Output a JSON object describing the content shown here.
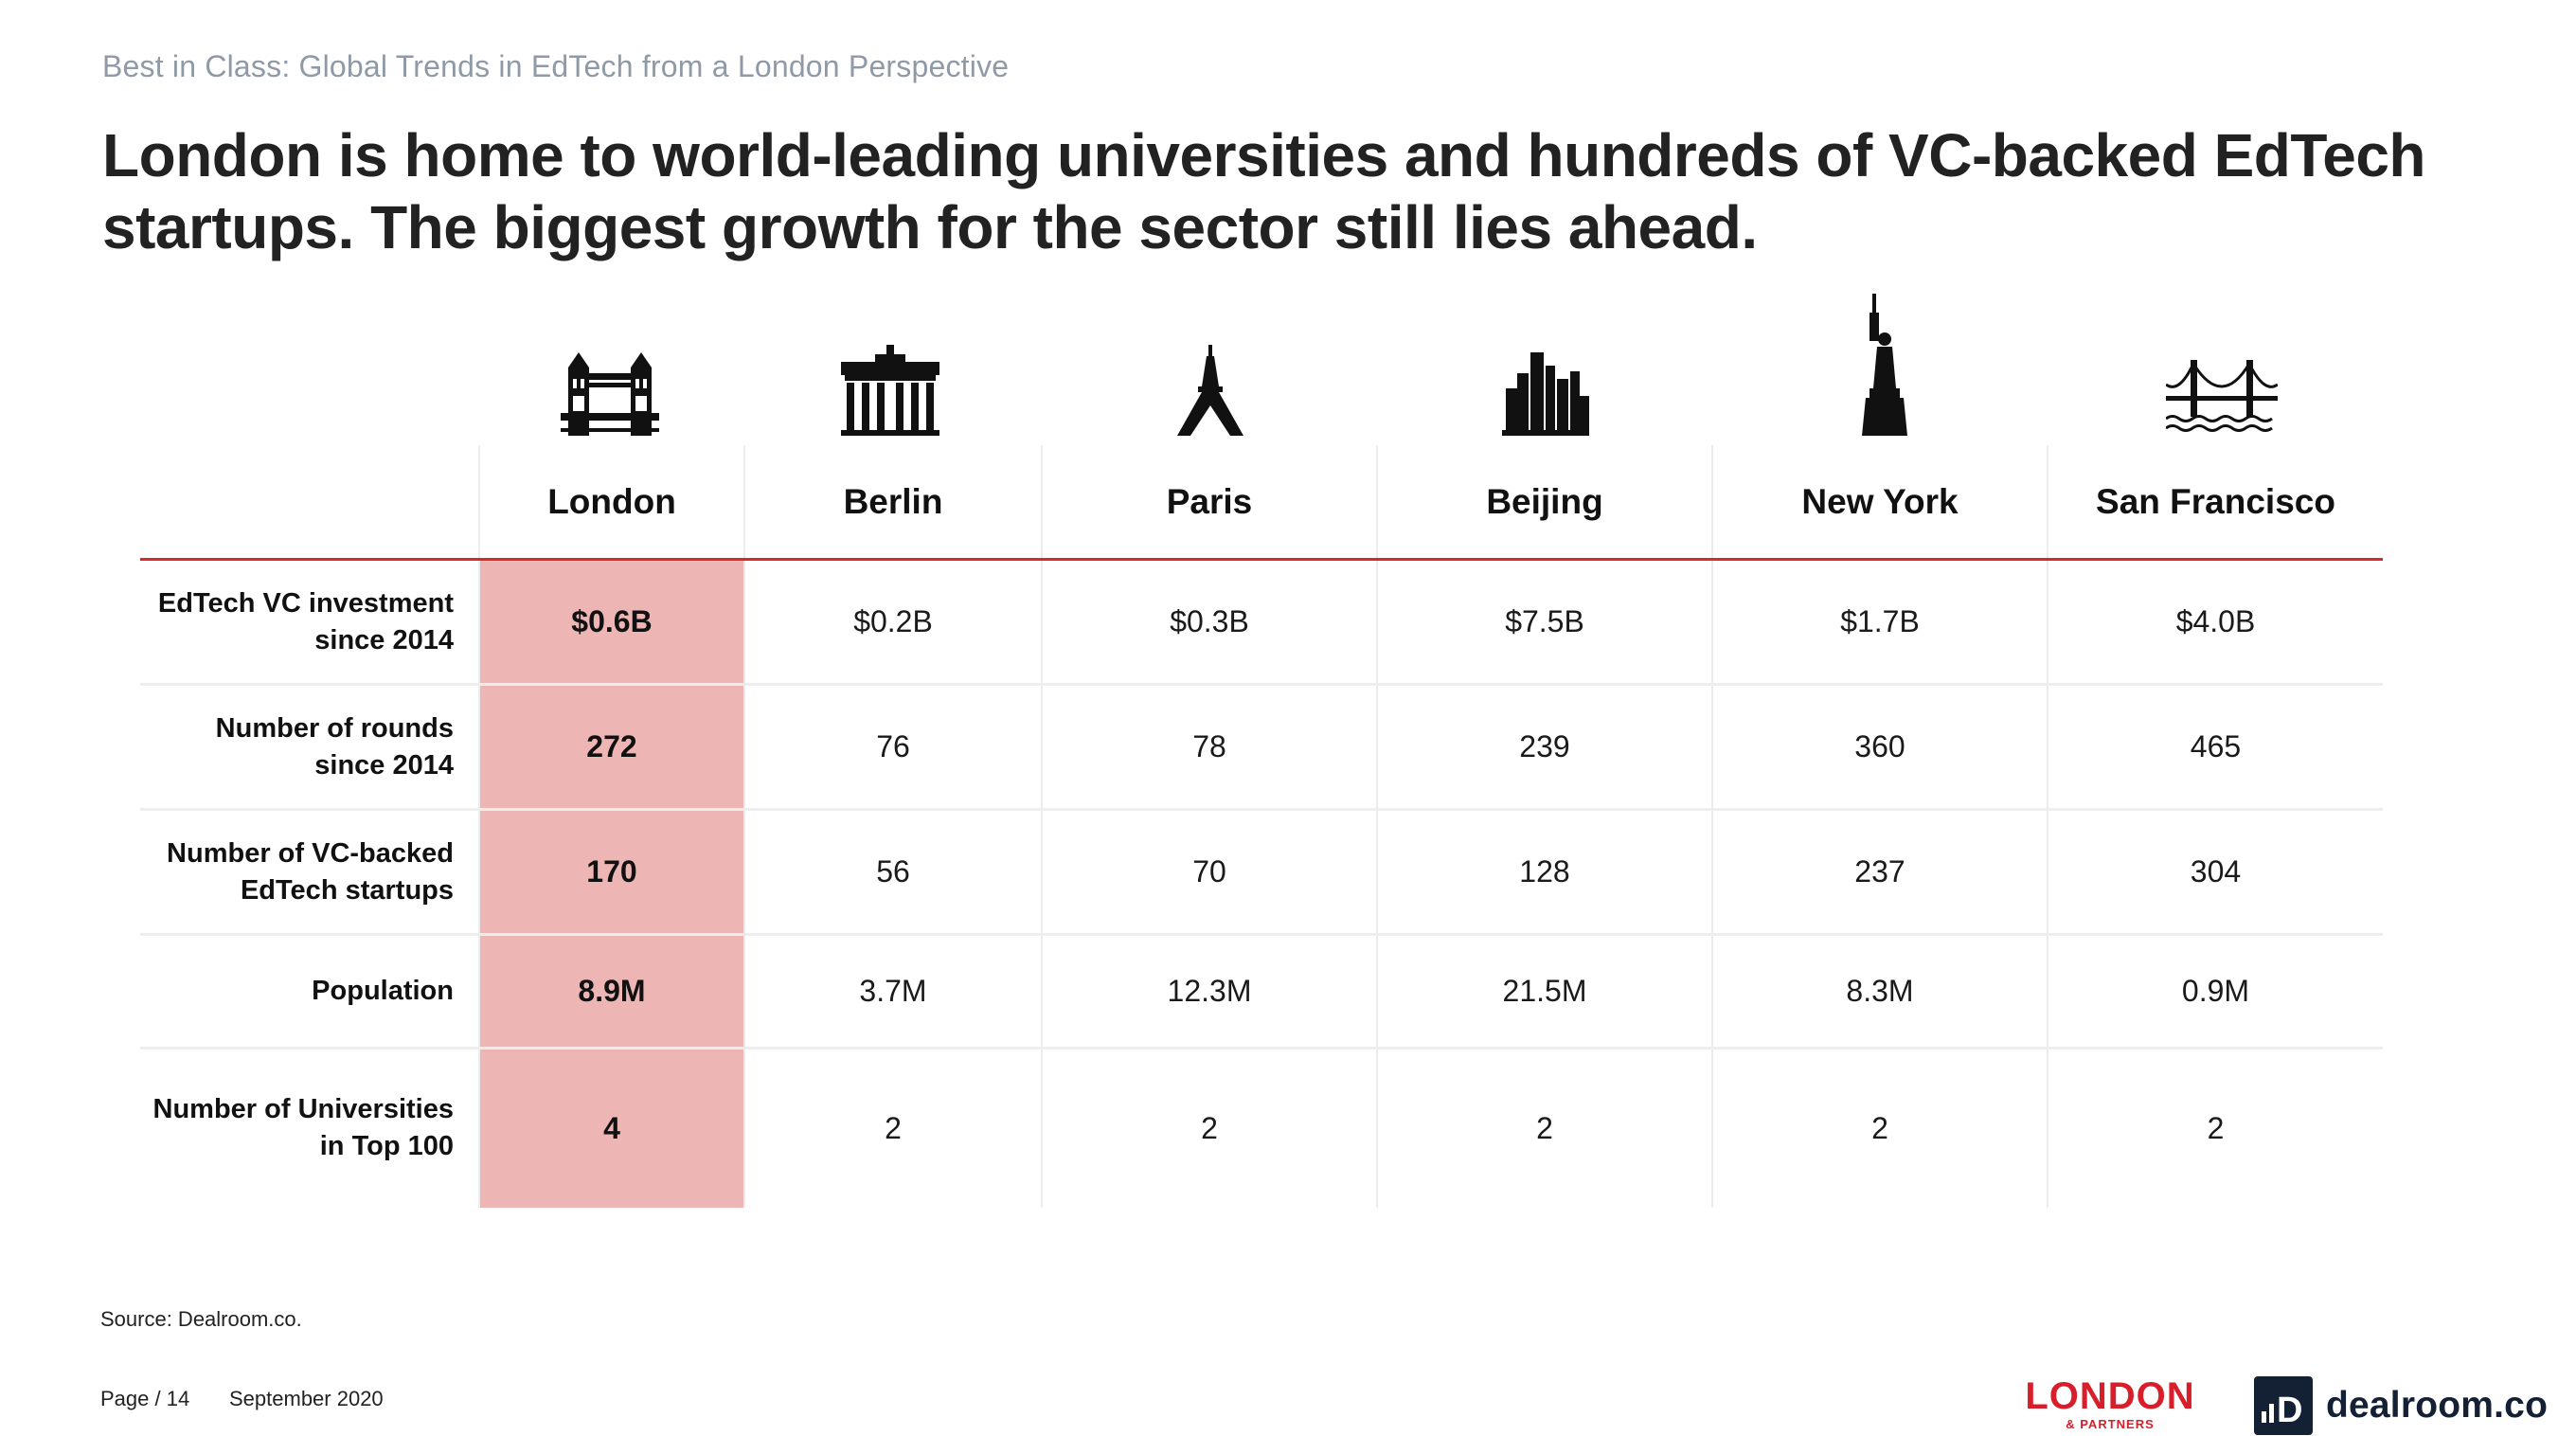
{
  "header": {
    "kicker": "Best in Class: Global Trends in EdTech from a London Perspective",
    "headline": "London is home to world-leading universities and hundreds of VC-backed EdTech startups. The biggest growth for the sector still lies ahead."
  },
  "colors": {
    "accent_red": "#d52b2b",
    "highlight": "#eeb5b5",
    "kicker_grey": "#8f9aa6",
    "dealroom_navy": "#142033"
  },
  "icons": [
    "tower-bridge-icon",
    "brandenburg-gate-icon",
    "eiffel-tower-icon",
    "beijing-skyline-icon",
    "statue-of-liberty-icon",
    "golden-gate-bridge-icon"
  ],
  "table": {
    "columns": [
      "London",
      "Berlin",
      "Paris",
      "Beijing",
      "New York",
      "San Francisco"
    ],
    "rows": [
      {
        "label": "EdTech VC investment since 2014",
        "values": [
          "$0.6B",
          "$0.2B",
          "$0.3B",
          "$7.5B",
          "$1.7B",
          "$4.0B"
        ]
      },
      {
        "label": "Number of rounds since 2014",
        "values": [
          "272",
          "76",
          "78",
          "239",
          "360",
          "465"
        ]
      },
      {
        "label": "Number of VC-backed EdTech startups",
        "values": [
          "170",
          "56",
          "70",
          "128",
          "237",
          "304"
        ]
      },
      {
        "label": "Population",
        "values": [
          "8.9M",
          "3.7M",
          "12.3M",
          "21.5M",
          "8.3M",
          "0.9M"
        ]
      },
      {
        "label": "Number of Universities in Top 100",
        "values": [
          "4",
          "2",
          "2",
          "2",
          "2",
          "2"
        ]
      }
    ]
  },
  "footer": {
    "source": "Source: Dealroom.co.",
    "page": "Page / 14",
    "date": "September 2020"
  },
  "logos": {
    "london_partners_main": "LONDON",
    "london_partners_sub": "& PARTNERS",
    "dealroom": "dealroom.co",
    "dealroom_mark": "D"
  }
}
